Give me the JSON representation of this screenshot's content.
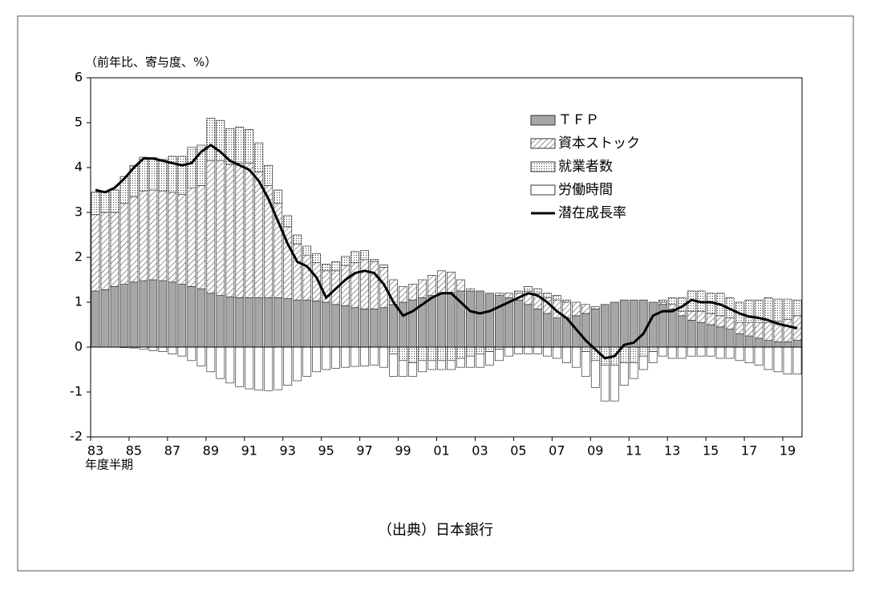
{
  "chart_data": {
    "type": "stacked_bar_line",
    "y_label": "（前年比、寄与度、%）",
    "x_label": "年度半期",
    "caption": "（出典）日本銀行",
    "categories": [
      "83",
      null,
      null,
      null,
      "85",
      null,
      null,
      null,
      "87",
      null,
      null,
      null,
      "89",
      null,
      null,
      null,
      "91",
      null,
      null,
      null,
      "93",
      null,
      null,
      null,
      "95",
      null,
      null,
      null,
      "97",
      null,
      null,
      null,
      "99",
      null,
      null,
      null,
      "01",
      null,
      null,
      null,
      "03",
      null,
      null,
      null,
      "05",
      null,
      null,
      null,
      "07",
      null,
      null,
      null,
      "09",
      null,
      null,
      null,
      "11",
      null,
      null,
      null,
      "13",
      null,
      null,
      null,
      "15",
      null,
      null,
      null,
      "17",
      null,
      null,
      null,
      "19",
      null
    ],
    "series": [
      {
        "name": "ＴＦＰ",
        "color": "#a6a6a6",
        "pattern": "solid",
        "values": [
          1.25,
          1.28,
          1.35,
          1.4,
          1.45,
          1.48,
          1.5,
          1.48,
          1.45,
          1.4,
          1.35,
          1.3,
          1.2,
          1.15,
          1.12,
          1.1,
          1.1,
          1.1,
          1.1,
          1.1,
          1.08,
          1.05,
          1.05,
          1.03,
          1.0,
          0.95,
          0.92,
          0.88,
          0.85,
          0.85,
          0.88,
          0.95,
          1.0,
          1.05,
          1.1,
          1.15,
          1.2,
          1.22,
          1.25,
          1.25,
          1.25,
          1.2,
          1.15,
          1.1,
          1.05,
          0.95,
          0.85,
          0.75,
          0.65,
          0.65,
          0.7,
          0.75,
          0.85,
          0.95,
          1.0,
          1.05,
          1.05,
          1.05,
          1.0,
          0.95,
          0.85,
          0.7,
          0.6,
          0.55,
          0.5,
          0.45,
          0.4,
          0.3,
          0.25,
          0.2,
          0.15,
          0.12,
          0.12,
          0.15
        ]
      },
      {
        "name": "資本ストック",
        "color": "#ffffff",
        "pattern": "hatch",
        "values": [
          1.7,
          1.72,
          1.65,
          1.8,
          1.9,
          2.0,
          2.0,
          2.0,
          2.0,
          2.0,
          2.2,
          2.3,
          2.95,
          3.0,
          2.95,
          3.0,
          3.0,
          2.8,
          2.5,
          2.1,
          1.6,
          1.25,
          1.0,
          0.85,
          0.7,
          0.75,
          0.9,
          1.0,
          1.1,
          1.05,
          0.9,
          0.55,
          0.35,
          0.35,
          0.4,
          0.45,
          0.5,
          0.45,
          0.25,
          0.05,
          0.0,
          0.0,
          0.05,
          0.1,
          0.15,
          0.3,
          0.35,
          0.35,
          0.4,
          0.35,
          0.3,
          0.2,
          0.05,
          0.0,
          0.0,
          0.0,
          0.0,
          0.0,
          0.0,
          0.05,
          0.1,
          0.1,
          0.2,
          0.25,
          0.25,
          0.25,
          0.25,
          0.25,
          0.3,
          0.35,
          0.4,
          0.45,
          0.5,
          0.55
        ]
      },
      {
        "name": "就業者数",
        "color": "#ffffff",
        "pattern": "dots",
        "values": [
          0.5,
          0.45,
          0.5,
          0.6,
          0.7,
          0.75,
          0.72,
          0.7,
          0.8,
          0.85,
          0.9,
          0.9,
          0.95,
          0.9,
          0.8,
          0.8,
          0.75,
          0.65,
          0.45,
          0.3,
          0.25,
          0.2,
          0.2,
          0.2,
          0.15,
          0.2,
          0.2,
          0.25,
          0.2,
          0.05,
          0.05,
          -0.15,
          -0.3,
          -0.35,
          -0.3,
          -0.3,
          -0.3,
          -0.3,
          -0.25,
          -0.2,
          -0.15,
          -0.1,
          -0.05,
          0.0,
          0.05,
          0.1,
          0.1,
          0.1,
          0.1,
          0.05,
          0.0,
          -0.1,
          -0.3,
          -0.4,
          -0.4,
          -0.35,
          -0.35,
          -0.2,
          -0.1,
          0.05,
          0.15,
          0.3,
          0.45,
          0.45,
          0.45,
          0.5,
          0.45,
          0.45,
          0.5,
          0.5,
          0.55,
          0.5,
          0.45,
          0.35
        ]
      },
      {
        "name": "労働時間",
        "color": "#ffffff",
        "pattern": "solid",
        "values": [
          0.0,
          0.0,
          0.0,
          -0.01,
          -0.02,
          -0.05,
          -0.08,
          -0.1,
          -0.15,
          -0.2,
          -0.3,
          -0.42,
          -0.55,
          -0.7,
          -0.8,
          -0.88,
          -0.93,
          -0.96,
          -0.97,
          -0.95,
          -0.85,
          -0.75,
          -0.65,
          -0.55,
          -0.5,
          -0.47,
          -0.45,
          -0.43,
          -0.42,
          -0.4,
          -0.45,
          -0.5,
          -0.35,
          -0.3,
          -0.25,
          -0.2,
          -0.2,
          -0.2,
          -0.2,
          -0.25,
          -0.3,
          -0.3,
          -0.25,
          -0.2,
          -0.15,
          -0.15,
          -0.15,
          -0.2,
          -0.25,
          -0.35,
          -0.45,
          -0.55,
          -0.6,
          -0.8,
          -0.8,
          -0.5,
          -0.35,
          -0.3,
          -0.25,
          -0.2,
          -0.25,
          -0.25,
          -0.2,
          -0.2,
          -0.2,
          -0.25,
          -0.25,
          -0.3,
          -0.35,
          -0.4,
          -0.5,
          -0.55,
          -0.6,
          -0.6
        ]
      },
      {
        "name": "潜在成長率",
        "color": "#000000",
        "kind": "line",
        "values": [
          3.5,
          3.45,
          3.55,
          3.75,
          4.0,
          4.2,
          4.2,
          4.15,
          4.1,
          4.05,
          4.1,
          4.35,
          4.5,
          4.35,
          4.15,
          4.05,
          3.95,
          3.7,
          3.3,
          2.8,
          2.3,
          1.9,
          1.8,
          1.55,
          1.1,
          1.3,
          1.5,
          1.65,
          1.7,
          1.65,
          1.4,
          1.0,
          0.7,
          0.8,
          0.95,
          1.1,
          1.2,
          1.2,
          1.0,
          0.8,
          0.75,
          0.8,
          0.9,
          1.0,
          1.1,
          1.2,
          1.15,
          1.0,
          0.8,
          0.65,
          0.4,
          0.15,
          -0.05,
          -0.25,
          -0.2,
          0.05,
          0.1,
          0.3,
          0.7,
          0.8,
          0.8,
          0.9,
          1.05,
          1.0,
          1.0,
          0.95,
          0.85,
          0.75,
          0.68,
          0.65,
          0.6,
          0.52,
          0.47,
          0.42
        ]
      }
    ],
    "ylim": [
      -2,
      6
    ],
    "yticks": [
      -2,
      -1,
      0,
      1,
      2,
      3,
      4,
      5,
      6
    ],
    "legend": "upper right"
  }
}
